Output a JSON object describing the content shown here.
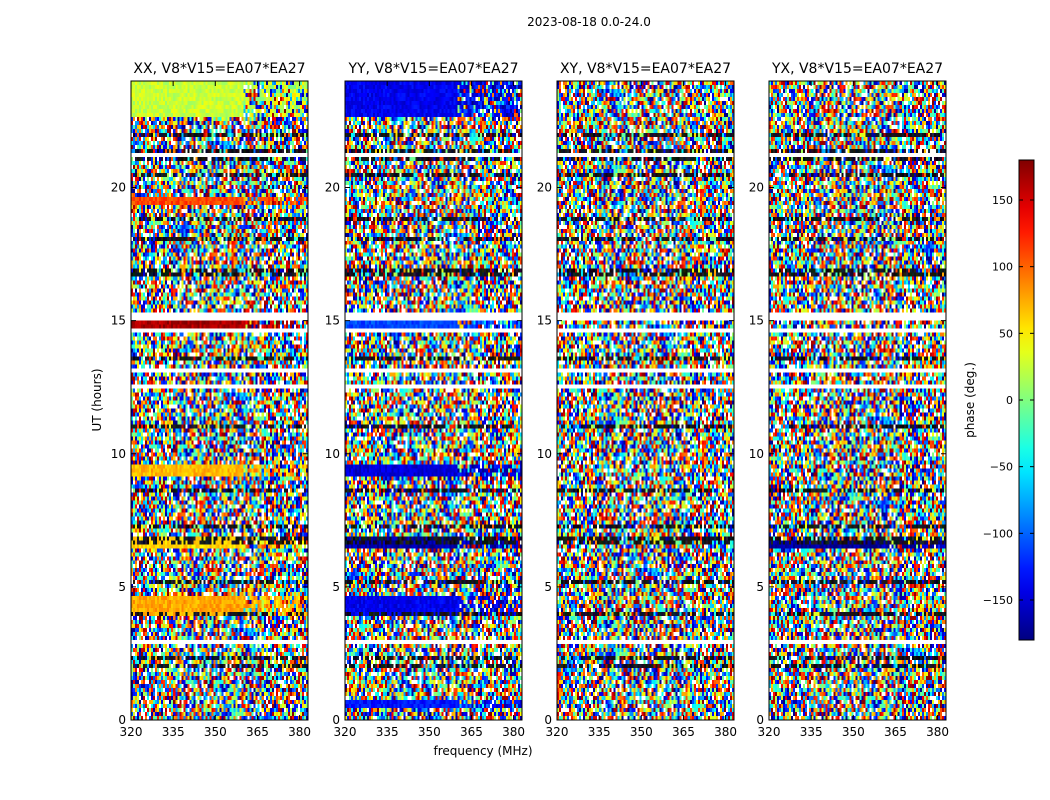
{
  "figure_title": "2023-08-18 0.0-24.0",
  "shared_xlabel": "frequency (MHz)",
  "shared_ylabel": "UT (hours)",
  "colorbar": {
    "label": "phase (deg.)",
    "range": [
      -180,
      180
    ],
    "ticks": [
      -150,
      -100,
      -50,
      0,
      50,
      100,
      150
    ],
    "tick_labels": [
      "−150",
      "−100",
      "−50",
      "0",
      "50",
      "100",
      "150"
    ],
    "colormap": "jet"
  },
  "chart_data": [
    {
      "type": "heatmap",
      "title": "XX, V8*V15=EA07*EA27",
      "polarization": "XX",
      "xlabel": "frequency (MHz)",
      "ylabel": "UT (hours)",
      "xlim": [
        320,
        383
      ],
      "ylim": [
        0,
        24
      ],
      "xticks": [
        320,
        335,
        350,
        365,
        380
      ],
      "yticks": [
        0,
        5,
        10,
        15,
        20
      ],
      "z": "phase (deg.)",
      "coherent_bands": [
        {
          "ut": [
            22.7,
            24.0
          ],
          "phase": 25
        },
        {
          "ut": [
            19.4,
            19.6
          ],
          "phase": 110
        },
        {
          "ut": [
            14.75,
            14.95
          ],
          "phase": 165
        },
        {
          "ut": [
            9.15,
            9.55
          ],
          "phase": 70
        },
        {
          "ut": [
            6.4,
            6.9
          ],
          "phase": 60
        },
        {
          "ut": [
            3.9,
            4.6
          ],
          "phase": 75
        }
      ]
    },
    {
      "type": "heatmap",
      "title": "YY, V8*V15=EA07*EA27",
      "polarization": "YY",
      "xlabel": "frequency (MHz)",
      "ylabel": "UT (hours)",
      "xlim": [
        320,
        383
      ],
      "ylim": [
        0,
        24
      ],
      "xticks": [
        320,
        335,
        350,
        365,
        380
      ],
      "yticks": [
        0,
        5,
        10,
        15,
        20
      ],
      "z": "phase (deg.)",
      "coherent_bands": [
        {
          "ut": [
            22.7,
            24.0
          ],
          "phase": -140
        },
        {
          "ut": [
            14.75,
            14.95
          ],
          "phase": -110
        },
        {
          "ut": [
            9.15,
            9.55
          ],
          "phase": -150
        },
        {
          "ut": [
            6.4,
            6.9
          ],
          "phase": -165
        },
        {
          "ut": [
            3.9,
            4.6
          ],
          "phase": -140
        },
        {
          "ut": [
            0.5,
            0.7
          ],
          "phase": -130
        }
      ]
    },
    {
      "type": "heatmap",
      "title": "XY, V8*V15=EA07*EA27",
      "polarization": "XY",
      "xlabel": "frequency (MHz)",
      "ylabel": "UT (hours)",
      "xlim": [
        320,
        383
      ],
      "ylim": [
        0,
        24
      ],
      "xticks": [
        320,
        335,
        350,
        365,
        380
      ],
      "yticks": [
        0,
        5,
        10,
        15,
        20
      ],
      "z": "phase (deg.)",
      "coherent_bands": []
    },
    {
      "type": "heatmap",
      "title": "YX, V8*V15=EA07*EA27",
      "polarization": "YX",
      "xlabel": "frequency (MHz)",
      "ylabel": "UT (hours)",
      "xlim": [
        320,
        383
      ],
      "ylim": [
        0,
        24
      ],
      "xticks": [
        320,
        335,
        350,
        365,
        380
      ],
      "yticks": [
        0,
        5,
        10,
        15,
        20
      ],
      "z": "phase (deg.)",
      "coherent_bands": [
        {
          "ut": [
            6.5,
            6.8
          ],
          "phase": -170
        }
      ]
    }
  ]
}
